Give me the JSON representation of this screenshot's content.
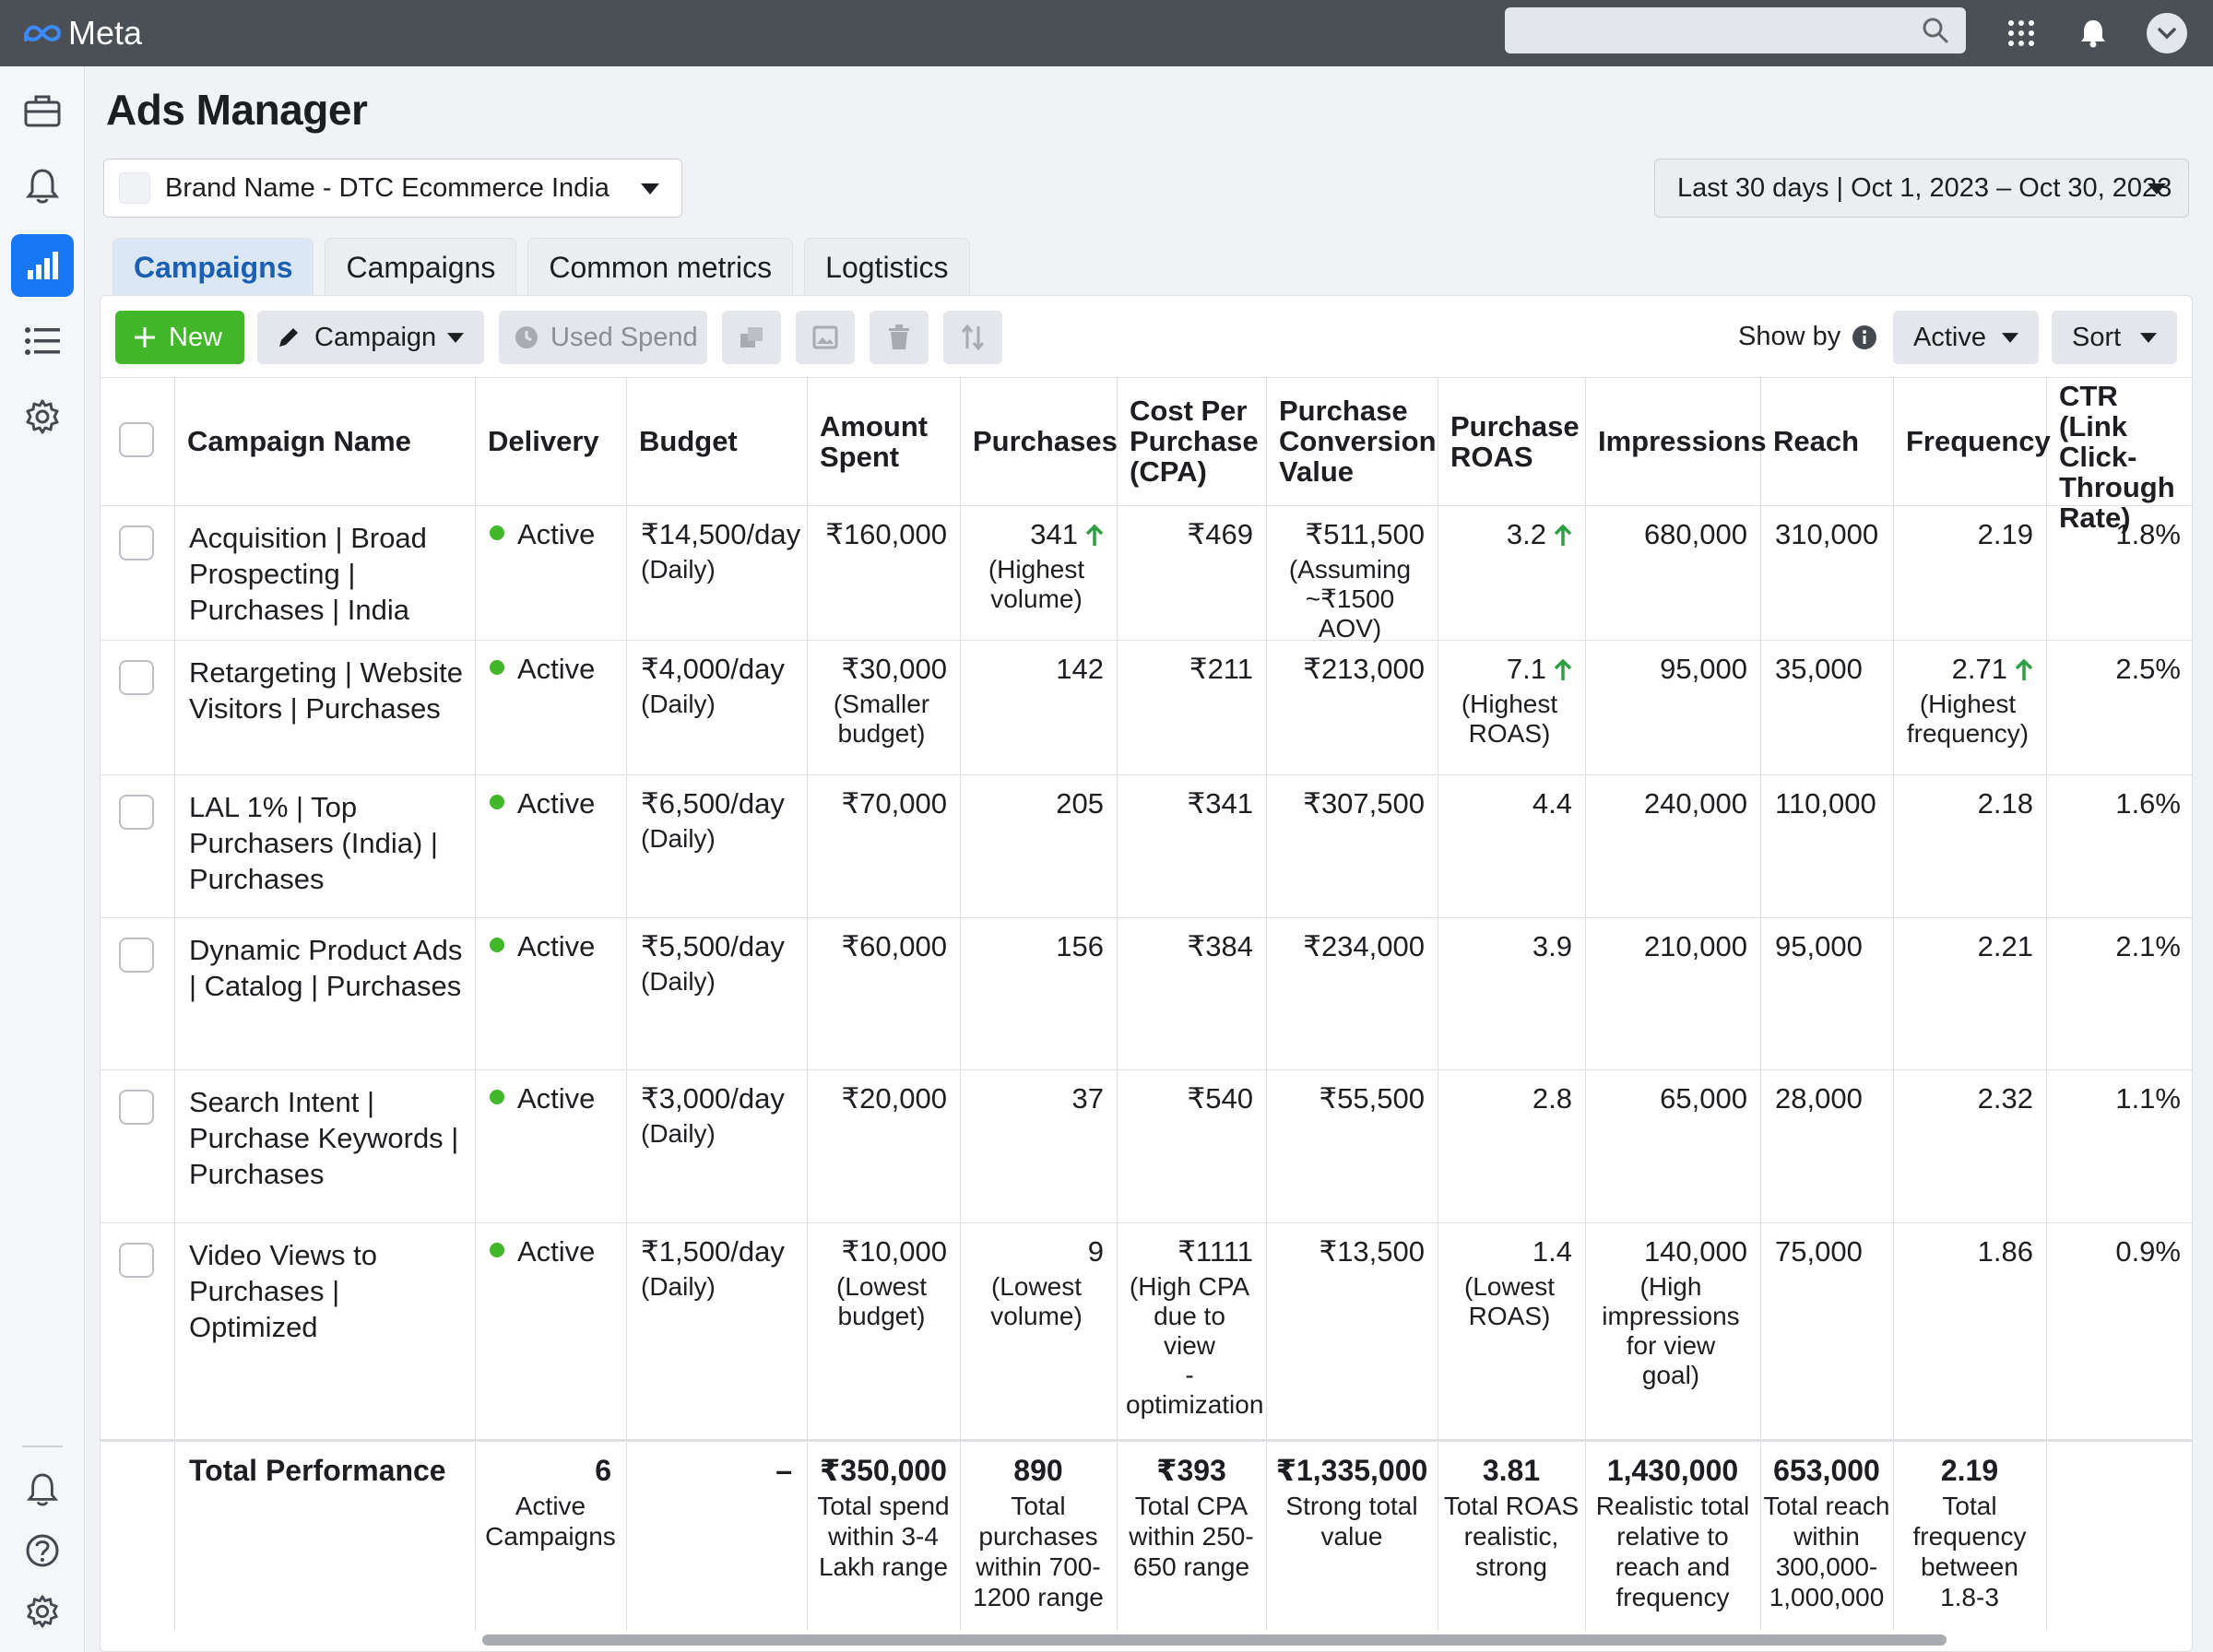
{
  "app": {
    "logo_text": "Meta"
  },
  "page": {
    "title": "Ads Manager"
  },
  "account": {
    "label": "Brand Name - DTC Ecommerce India"
  },
  "date_range": {
    "label": "Last 30 days | Oct 1, 2023 – Oct 30, 2023"
  },
  "tabs": [
    {
      "label": "Campaigns"
    },
    {
      "label": "Campaigns"
    },
    {
      "label": "Common metrics"
    },
    {
      "label": "Logtistics"
    }
  ],
  "toolbar": {
    "new_label": "New",
    "campaign_label": "Campaign",
    "used_spend_label": "Used Spend",
    "show_by_label": "Show by",
    "active_label": "Active",
    "sort_label": "Sort"
  },
  "table": {
    "headers": {
      "name": "Campaign Name",
      "delivery": "Delivery",
      "budget": "Budget",
      "spent": [
        "Amount",
        "Spent"
      ],
      "purchases": "Purchases",
      "cpa": [
        "Cost Per",
        "Purchase",
        "(CPA)"
      ],
      "pcv": [
        "Purchase",
        "Conversion",
        "Value"
      ],
      "roas": [
        "Purchase",
        "ROAS"
      ],
      "impressions": "Impressions",
      "reach": "Reach",
      "frequency": "Frequency",
      "ctr": [
        "CTR (Link",
        "Click-",
        "Through",
        "Rate)"
      ]
    },
    "rows": [
      {
        "name": [
          "Acquisition | Broad",
          "Prospecting |",
          "Purchases | India"
        ],
        "delivery": "Active",
        "budget": "₹14,500/day",
        "budget_note": "(Daily)",
        "spent": "₹160,000",
        "spent_note": [],
        "purchases": "341",
        "purchases_note": [
          "(Highest",
          "volume)"
        ],
        "cpa": "₹469",
        "cpa_note": [],
        "pcv": "₹511,500",
        "pcv_note": [
          "(Assuming",
          "~₹1500 AOV)"
        ],
        "roas": "3.2",
        "roas_note": [],
        "impressions": "680,000",
        "impressions_note": [],
        "reach": "310,000",
        "frequency": "2.19",
        "frequency_note": [],
        "ctr": "1.8%"
      },
      {
        "name": [
          "Retargeting | Website",
          "Visitors | Purchases"
        ],
        "delivery": "Active",
        "budget": "₹4,000/day",
        "budget_note": "(Daily)",
        "spent": "₹30,000",
        "spent_note": [
          "(Smaller",
          "budget)"
        ],
        "purchases": "142",
        "purchases_note": [],
        "cpa": "₹211",
        "cpa_note": [],
        "pcv": "₹213,000",
        "pcv_note": [],
        "roas": "7.1",
        "roas_note": [
          "(Highest",
          "ROAS)"
        ],
        "impressions": "95,000",
        "impressions_note": [],
        "reach": "35,000",
        "frequency": "2.71",
        "frequency_note": [
          "(Highest",
          "frequency)"
        ],
        "ctr": "2.5%"
      },
      {
        "name": [
          "LAL 1% | Top",
          "Purchasers (India) |",
          "Purchases"
        ],
        "delivery": "Active",
        "budget": "₹6,500/day",
        "budget_note": "(Daily)",
        "spent": "₹70,000",
        "spent_note": [],
        "purchases": "205",
        "purchases_note": [],
        "cpa": "₹341",
        "cpa_note": [],
        "pcv": "₹307,500",
        "pcv_note": [],
        "roas": "4.4",
        "roas_note": [],
        "impressions": "240,000",
        "impressions_note": [],
        "reach": "110,000",
        "frequency": "2.18",
        "frequency_note": [],
        "ctr": "1.6%"
      },
      {
        "name": [
          "Dynamic Product Ads",
          "| Catalog | Purchases"
        ],
        "delivery": "Active",
        "budget": "₹5,500/day",
        "budget_note": "(Daily)",
        "spent": "₹60,000",
        "spent_note": [],
        "purchases": "156",
        "purchases_note": [],
        "cpa": "₹384",
        "cpa_note": [],
        "pcv": "₹234,000",
        "pcv_note": [],
        "roas": "3.9",
        "roas_note": [],
        "impressions": "210,000",
        "impressions_note": [],
        "reach": "95,000",
        "frequency": "2.21",
        "frequency_note": [],
        "ctr": "2.1%"
      },
      {
        "name": [
          "Search Intent |",
          "Purchase Keywords |",
          "Purchases"
        ],
        "delivery": "Active",
        "budget": "₹3,000/day",
        "budget_note": "(Daily)",
        "spent": "₹20,000",
        "spent_note": [],
        "purchases": "37",
        "purchases_note": [],
        "cpa": "₹540",
        "cpa_note": [],
        "pcv": "₹55,500",
        "pcv_note": [],
        "roas": "2.8",
        "roas_note": [],
        "impressions": "65,000",
        "impressions_note": [],
        "reach": "28,000",
        "frequency": "2.32",
        "frequency_note": [],
        "ctr": "1.1%"
      },
      {
        "name": [
          "Video Views to",
          "Purchases | Optimized"
        ],
        "delivery": "Active",
        "budget": "₹1,500/day",
        "budget_note": "(Daily)",
        "spent": "₹10,000",
        "spent_note": [
          "(Lowest",
          "budget)"
        ],
        "purchases": "9",
        "purchases_note": [
          "(Lowest",
          "volume)"
        ],
        "cpa": "₹1111",
        "cpa_note": [
          "(High CPA",
          "due to view",
          "-",
          "optimization"
        ],
        "pcv": "₹13,500",
        "pcv_note": [],
        "roas": "1.4",
        "roas_note": [
          "(Lowest",
          "ROAS)"
        ],
        "impressions": "140,000",
        "impressions_note": [
          "(High",
          "impressions",
          "for view goal)"
        ],
        "reach": "75,000",
        "frequency": "1.86",
        "frequency_note": [],
        "ctr": "0.9%"
      }
    ],
    "totals": {
      "label": "Total Performance",
      "delivery": "6",
      "delivery_note": [
        "Active",
        "Campaigns"
      ],
      "budget": "–",
      "spent": "₹350,000",
      "spent_note": [
        "Total spend",
        "within 3-4",
        "Lakh range"
      ],
      "purchases": "890",
      "purchases_note": [
        "Total",
        "purchases",
        "within 700-",
        "1200 range"
      ],
      "cpa": "₹393",
      "cpa_note": [
        "Total CPA",
        "within 250-",
        "650 range"
      ],
      "pcv": "₹1,335,000",
      "pcv_note": [
        "Strong total",
        "value"
      ],
      "roas": "3.81",
      "roas_note": [
        "Total ROAS",
        "realistic,",
        "strong"
      ],
      "impressions": "1,430,000",
      "impressions_note": [
        "Realistic total",
        "relative to",
        "reach and",
        "frequency"
      ],
      "reach": "653,000",
      "reach_note": [
        "Total reach",
        "within",
        "300,000-",
        "1,000,000"
      ],
      "frequency": "2.19",
      "frequency_note": [
        "Total",
        "frequency",
        "between",
        "1.8-3"
      ]
    }
  }
}
